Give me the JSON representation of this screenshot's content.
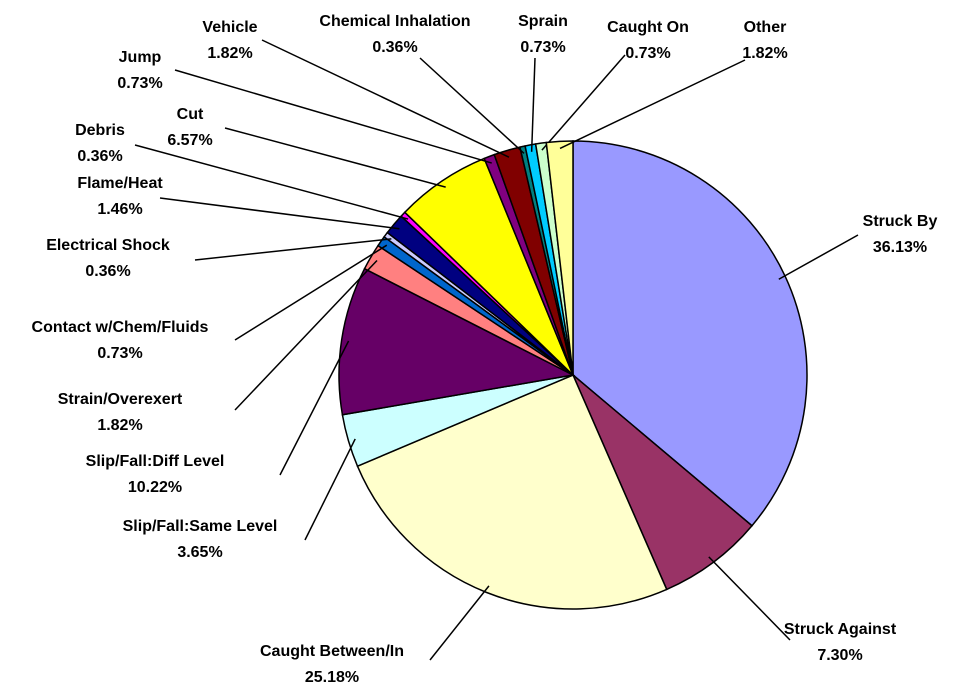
{
  "chart_data": {
    "type": "pie",
    "categories": [
      "Struck By",
      "Struck Against",
      "Caught Between/In",
      "Slip/Fall:Same Level",
      "Slip/Fall:Diff Level",
      "Strain/Overexert",
      "Contact w/Chem/Fluids",
      "Electrical Shock",
      "Flame/Heat",
      "Debris",
      "Cut",
      "Jump",
      "Vehicle",
      "Chemical Inhalation",
      "Sprain",
      "Caught On",
      "Other"
    ],
    "values": [
      36.13,
      7.3,
      25.18,
      3.65,
      10.22,
      1.82,
      0.73,
      0.36,
      1.46,
      0.36,
      6.57,
      0.73,
      1.82,
      0.36,
      0.73,
      0.73,
      1.82
    ],
    "value_labels": [
      "36.13%",
      "7.30%",
      "25.18%",
      "3.65%",
      "10.22%",
      "1.82%",
      "0.73%",
      "0.36%",
      "1.46%",
      "0.36%",
      "6.57%",
      "0.73%",
      "1.82%",
      "0.36%",
      "0.73%",
      "0.73%",
      "1.82%"
    ],
    "colors": [
      "#9999ff",
      "#993366",
      "#ffffcc",
      "#ccffff",
      "#660066",
      "#ff8080",
      "#0066cc",
      "#ccccff",
      "#000080",
      "#ff00ff",
      "#ffff00",
      "#800080",
      "#800000",
      "#008080",
      "#00ccff",
      "#ccffcc",
      "#ffff99"
    ]
  }
}
